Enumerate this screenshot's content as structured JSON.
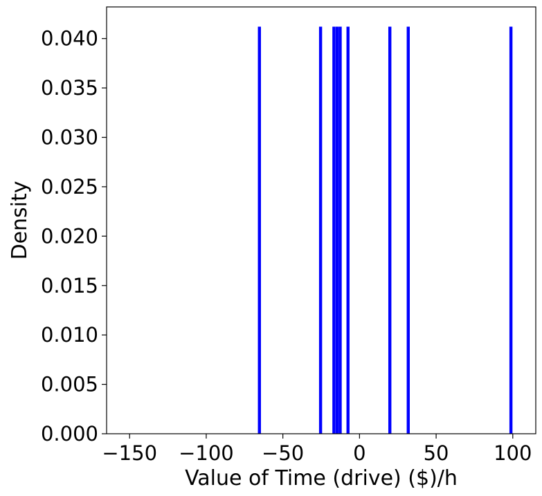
{
  "chart_data": {
    "type": "bar",
    "xlabel": "Value of Time (drive) ($)/h",
    "ylabel": "Density",
    "xlim": [
      -165,
      115
    ],
    "ylim": [
      0,
      0.0432
    ],
    "xticks": [
      -150,
      -100,
      -50,
      0,
      50,
      100
    ],
    "xtick_labels": [
      "−150",
      "−100",
      "−50",
      "0",
      "50",
      "100"
    ],
    "yticks": [
      0.0,
      0.005,
      0.01,
      0.015,
      0.02,
      0.025,
      0.03,
      0.035,
      0.04
    ],
    "ytick_labels": [
      "0.000",
      "0.005",
      "0.010",
      "0.015",
      "0.020",
      "0.025",
      "0.030",
      "0.035",
      "0.040"
    ],
    "bar_width": 2.0,
    "bars": [
      {
        "x": -65.3,
        "value": 0.0412
      },
      {
        "x": -25.4,
        "value": 0.0412
      },
      {
        "x": -16.7,
        "value": 0.0412
      },
      {
        "x": -14.6,
        "value": 0.0412
      },
      {
        "x": -12.6,
        "value": 0.0412
      },
      {
        "x": -7.5,
        "value": 0.0412
      },
      {
        "x": 19.8,
        "value": 0.0412
      },
      {
        "x": 31.8,
        "value": 0.0412
      },
      {
        "x": 98.8,
        "value": 0.0412
      }
    ],
    "bar_color": "#0000ff",
    "grid": false,
    "legend": "none"
  }
}
